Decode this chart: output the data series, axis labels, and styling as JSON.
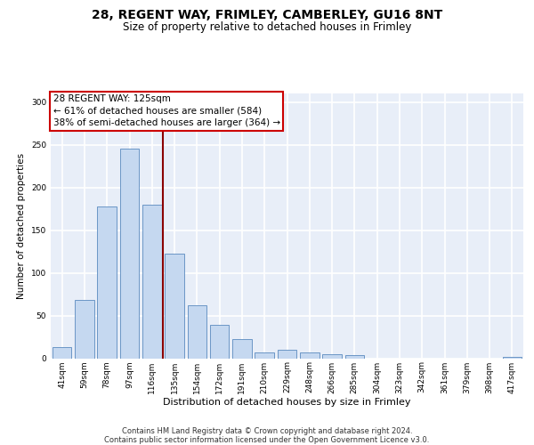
{
  "title1": "28, REGENT WAY, FRIMLEY, CAMBERLEY, GU16 8NT",
  "title2": "Size of property relative to detached houses in Frimley",
  "xlabel": "Distribution of detached houses by size in Frimley",
  "ylabel": "Number of detached properties",
  "categories": [
    "41sqm",
    "59sqm",
    "78sqm",
    "97sqm",
    "116sqm",
    "135sqm",
    "154sqm",
    "172sqm",
    "191sqm",
    "210sqm",
    "229sqm",
    "248sqm",
    "266sqm",
    "285sqm",
    "304sqm",
    "323sqm",
    "342sqm",
    "361sqm",
    "379sqm",
    "398sqm",
    "417sqm"
  ],
  "values": [
    13,
    68,
    178,
    245,
    180,
    122,
    62,
    39,
    22,
    7,
    10,
    7,
    5,
    4,
    0,
    0,
    0,
    0,
    0,
    0,
    2
  ],
  "bar_color": "#c5d8f0",
  "bar_edge_color": "#5a8abf",
  "vline_x": 4.5,
  "vline_color": "#8b0000",
  "annotation_line1": "28 REGENT WAY: 125sqm",
  "annotation_line2": "← 61% of detached houses are smaller (584)",
  "annotation_line3": "38% of semi-detached houses are larger (364) →",
  "annotation_box_color": "#ffffff",
  "annotation_box_edge": "#cc0000",
  "ylim": [
    0,
    310
  ],
  "yticks": [
    0,
    50,
    100,
    150,
    200,
    250,
    300
  ],
  "footnote": "Contains HM Land Registry data © Crown copyright and database right 2024.\nContains public sector information licensed under the Open Government Licence v3.0.",
  "bg_color": "#e8eef8",
  "grid_color": "#ffffff",
  "title1_fontsize": 10,
  "title2_fontsize": 8.5,
  "xlabel_fontsize": 8,
  "ylabel_fontsize": 7.5,
  "tick_fontsize": 6.5,
  "annotation_fontsize": 7.5,
  "footnote_fontsize": 6
}
